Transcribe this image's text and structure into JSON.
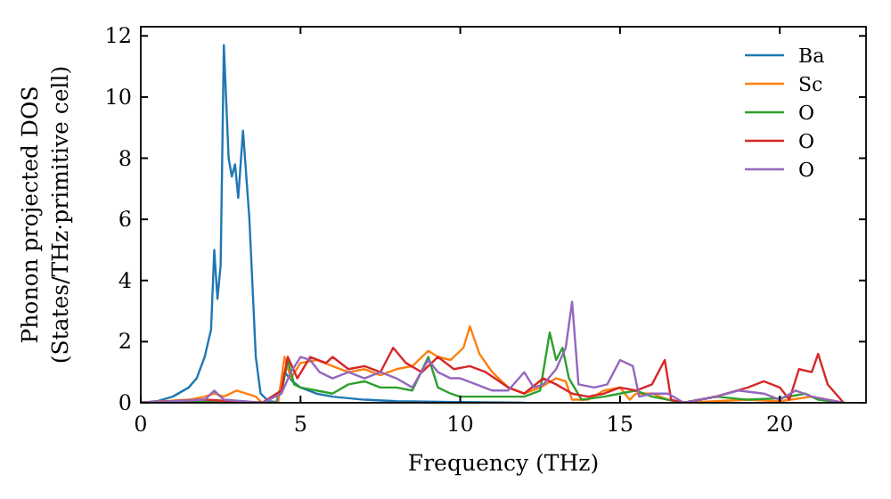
{
  "chart_data": {
    "type": "line",
    "xlabel": "Frequency (THz)",
    "ylabel": "Phonon projected DOS\n(States/THz·primitive cell)",
    "xlim": [
      0,
      22.7
    ],
    "ylim": [
      0,
      12.3
    ],
    "xticks": [
      0,
      5,
      10,
      15,
      20
    ],
    "yticks": [
      0,
      2,
      4,
      6,
      8,
      10,
      12
    ],
    "legend": "top right",
    "grid": false,
    "series": [
      {
        "name": "Ba",
        "color": "#1f77b4",
        "x": [
          0,
          0.5,
          1,
          1.5,
          1.75,
          2,
          2.2,
          2.3,
          2.4,
          2.5,
          2.6,
          2.75,
          2.85,
          2.95,
          3.05,
          3.2,
          3.4,
          3.6,
          3.75,
          4,
          4.25,
          4.5,
          4.75,
          5,
          5.5,
          6,
          7,
          8,
          10,
          12
        ],
        "values": [
          0,
          0.05,
          0.2,
          0.5,
          0.8,
          1.5,
          2.4,
          5,
          3.4,
          4.5,
          11.7,
          8,
          7.4,
          7.8,
          6.7,
          8.9,
          6,
          1.5,
          0.3,
          0.05,
          0.02,
          1,
          0.7,
          0.5,
          0.3,
          0.2,
          0.1,
          0.05,
          0.02,
          0
        ]
      },
      {
        "name": "Sc",
        "color": "#ff7f0e",
        "x": [
          0,
          1.5,
          2,
          2.3,
          2.6,
          3,
          3.3,
          3.6,
          3.8,
          4.3,
          4.5,
          4.7,
          5,
          5.5,
          6,
          6.5,
          7,
          7.5,
          8,
          8.5,
          9,
          9.3,
          9.7,
          10.1,
          10.3,
          10.6,
          11,
          11.5,
          12,
          12.5,
          13,
          13.3,
          13.5,
          14,
          14.5,
          15,
          15.3,
          15.5,
          16,
          16.5,
          17,
          18,
          19,
          20,
          21,
          21.5,
          22
        ],
        "values": [
          0,
          0.1,
          0.2,
          0.3,
          0.2,
          0.4,
          0.3,
          0.2,
          0,
          0,
          1.5,
          0.8,
          1.3,
          1.4,
          1.2,
          1,
          1.1,
          0.9,
          1.1,
          1.2,
          1.7,
          1.5,
          1.4,
          1.8,
          2.5,
          1.6,
          1,
          0.5,
          0.3,
          0.5,
          0.8,
          0.7,
          0.1,
          0.1,
          0.4,
          0.5,
          0.1,
          0.3,
          0.3,
          0.1,
          0,
          0.05,
          0.1,
          0.05,
          0.2,
          0.1,
          0
        ]
      },
      {
        "name": "O",
        "color": "#2ca02c",
        "x": [
          0,
          2,
          3.8,
          4.4,
          4.6,
          4.8,
          5,
          5.5,
          6,
          6.5,
          7,
          7.5,
          8,
          8.5,
          9,
          9.3,
          9.7,
          10,
          11,
          12,
          12.5,
          12.8,
          13,
          13.2,
          13.4,
          13.8,
          14.5,
          15,
          15.5,
          16,
          17,
          18,
          19,
          20,
          20.8,
          21.2,
          22
        ],
        "values": [
          0,
          0.05,
          0,
          0.3,
          1.4,
          0.6,
          0.5,
          0.4,
          0.3,
          0.6,
          0.7,
          0.5,
          0.5,
          0.4,
          1.5,
          0.5,
          0.3,
          0.2,
          0.2,
          0.2,
          0.4,
          2.3,
          1.4,
          1.8,
          0.8,
          0.1,
          0.2,
          0.3,
          0.4,
          0.2,
          0,
          0.2,
          0.1,
          0.15,
          0.3,
          0.1,
          0
        ]
      },
      {
        "name": "O",
        "color": "#d62728",
        "x": [
          0,
          2,
          3.8,
          4.4,
          4.6,
          4.9,
          5.3,
          5.8,
          6,
          6.5,
          7,
          7.5,
          7.9,
          8.3,
          8.8,
          9.3,
          9.8,
          10.3,
          10.8,
          11.5,
          12,
          12.6,
          13,
          13.5,
          14,
          14.5,
          15,
          15.5,
          16,
          16.4,
          16.6,
          17,
          18,
          19,
          19.5,
          20,
          20.3,
          20.6,
          21,
          21.2,
          21.5,
          22
        ],
        "values": [
          0,
          0.1,
          0,
          0.4,
          1.5,
          0.8,
          1.5,
          1.3,
          1.5,
          1.1,
          1.2,
          1,
          1.8,
          1.3,
          1,
          1.5,
          1.1,
          1.2,
          1,
          0.5,
          0.3,
          0.8,
          0.6,
          0.3,
          0.2,
          0.3,
          0.5,
          0.4,
          0.6,
          1.4,
          0.1,
          0,
          0.2,
          0.5,
          0.7,
          0.5,
          0.1,
          1.1,
          1,
          1.6,
          0.6,
          0
        ]
      },
      {
        "name": "O",
        "color": "#9467bd",
        "x": [
          0,
          2,
          2.3,
          2.6,
          3.8,
          4.4,
          4.7,
          5,
          5.3,
          5.6,
          6,
          6.5,
          7,
          7.5,
          8,
          8.5,
          9,
          9.3,
          9.7,
          10,
          10.5,
          11,
          11.5,
          12,
          12.3,
          12.6,
          13,
          13.3,
          13.5,
          13.7,
          14.2,
          14.6,
          15,
          15.4,
          15.6,
          16,
          16.5,
          17,
          18,
          18.7,
          19.5,
          20,
          20.5,
          21,
          22
        ],
        "values": [
          0,
          0.1,
          0.4,
          0.1,
          0,
          0.3,
          1,
          1.5,
          1.4,
          1,
          0.8,
          1,
          0.8,
          1,
          0.8,
          0.5,
          1.4,
          1,
          0.8,
          0.8,
          0.6,
          0.4,
          0.4,
          1,
          0.5,
          0.6,
          1.1,
          1.8,
          3.3,
          0.6,
          0.5,
          0.6,
          1.4,
          1.2,
          0.2,
          0.3,
          0.3,
          0,
          0.2,
          0.4,
          0.3,
          0.1,
          0.4,
          0.2,
          0
        ]
      }
    ]
  }
}
